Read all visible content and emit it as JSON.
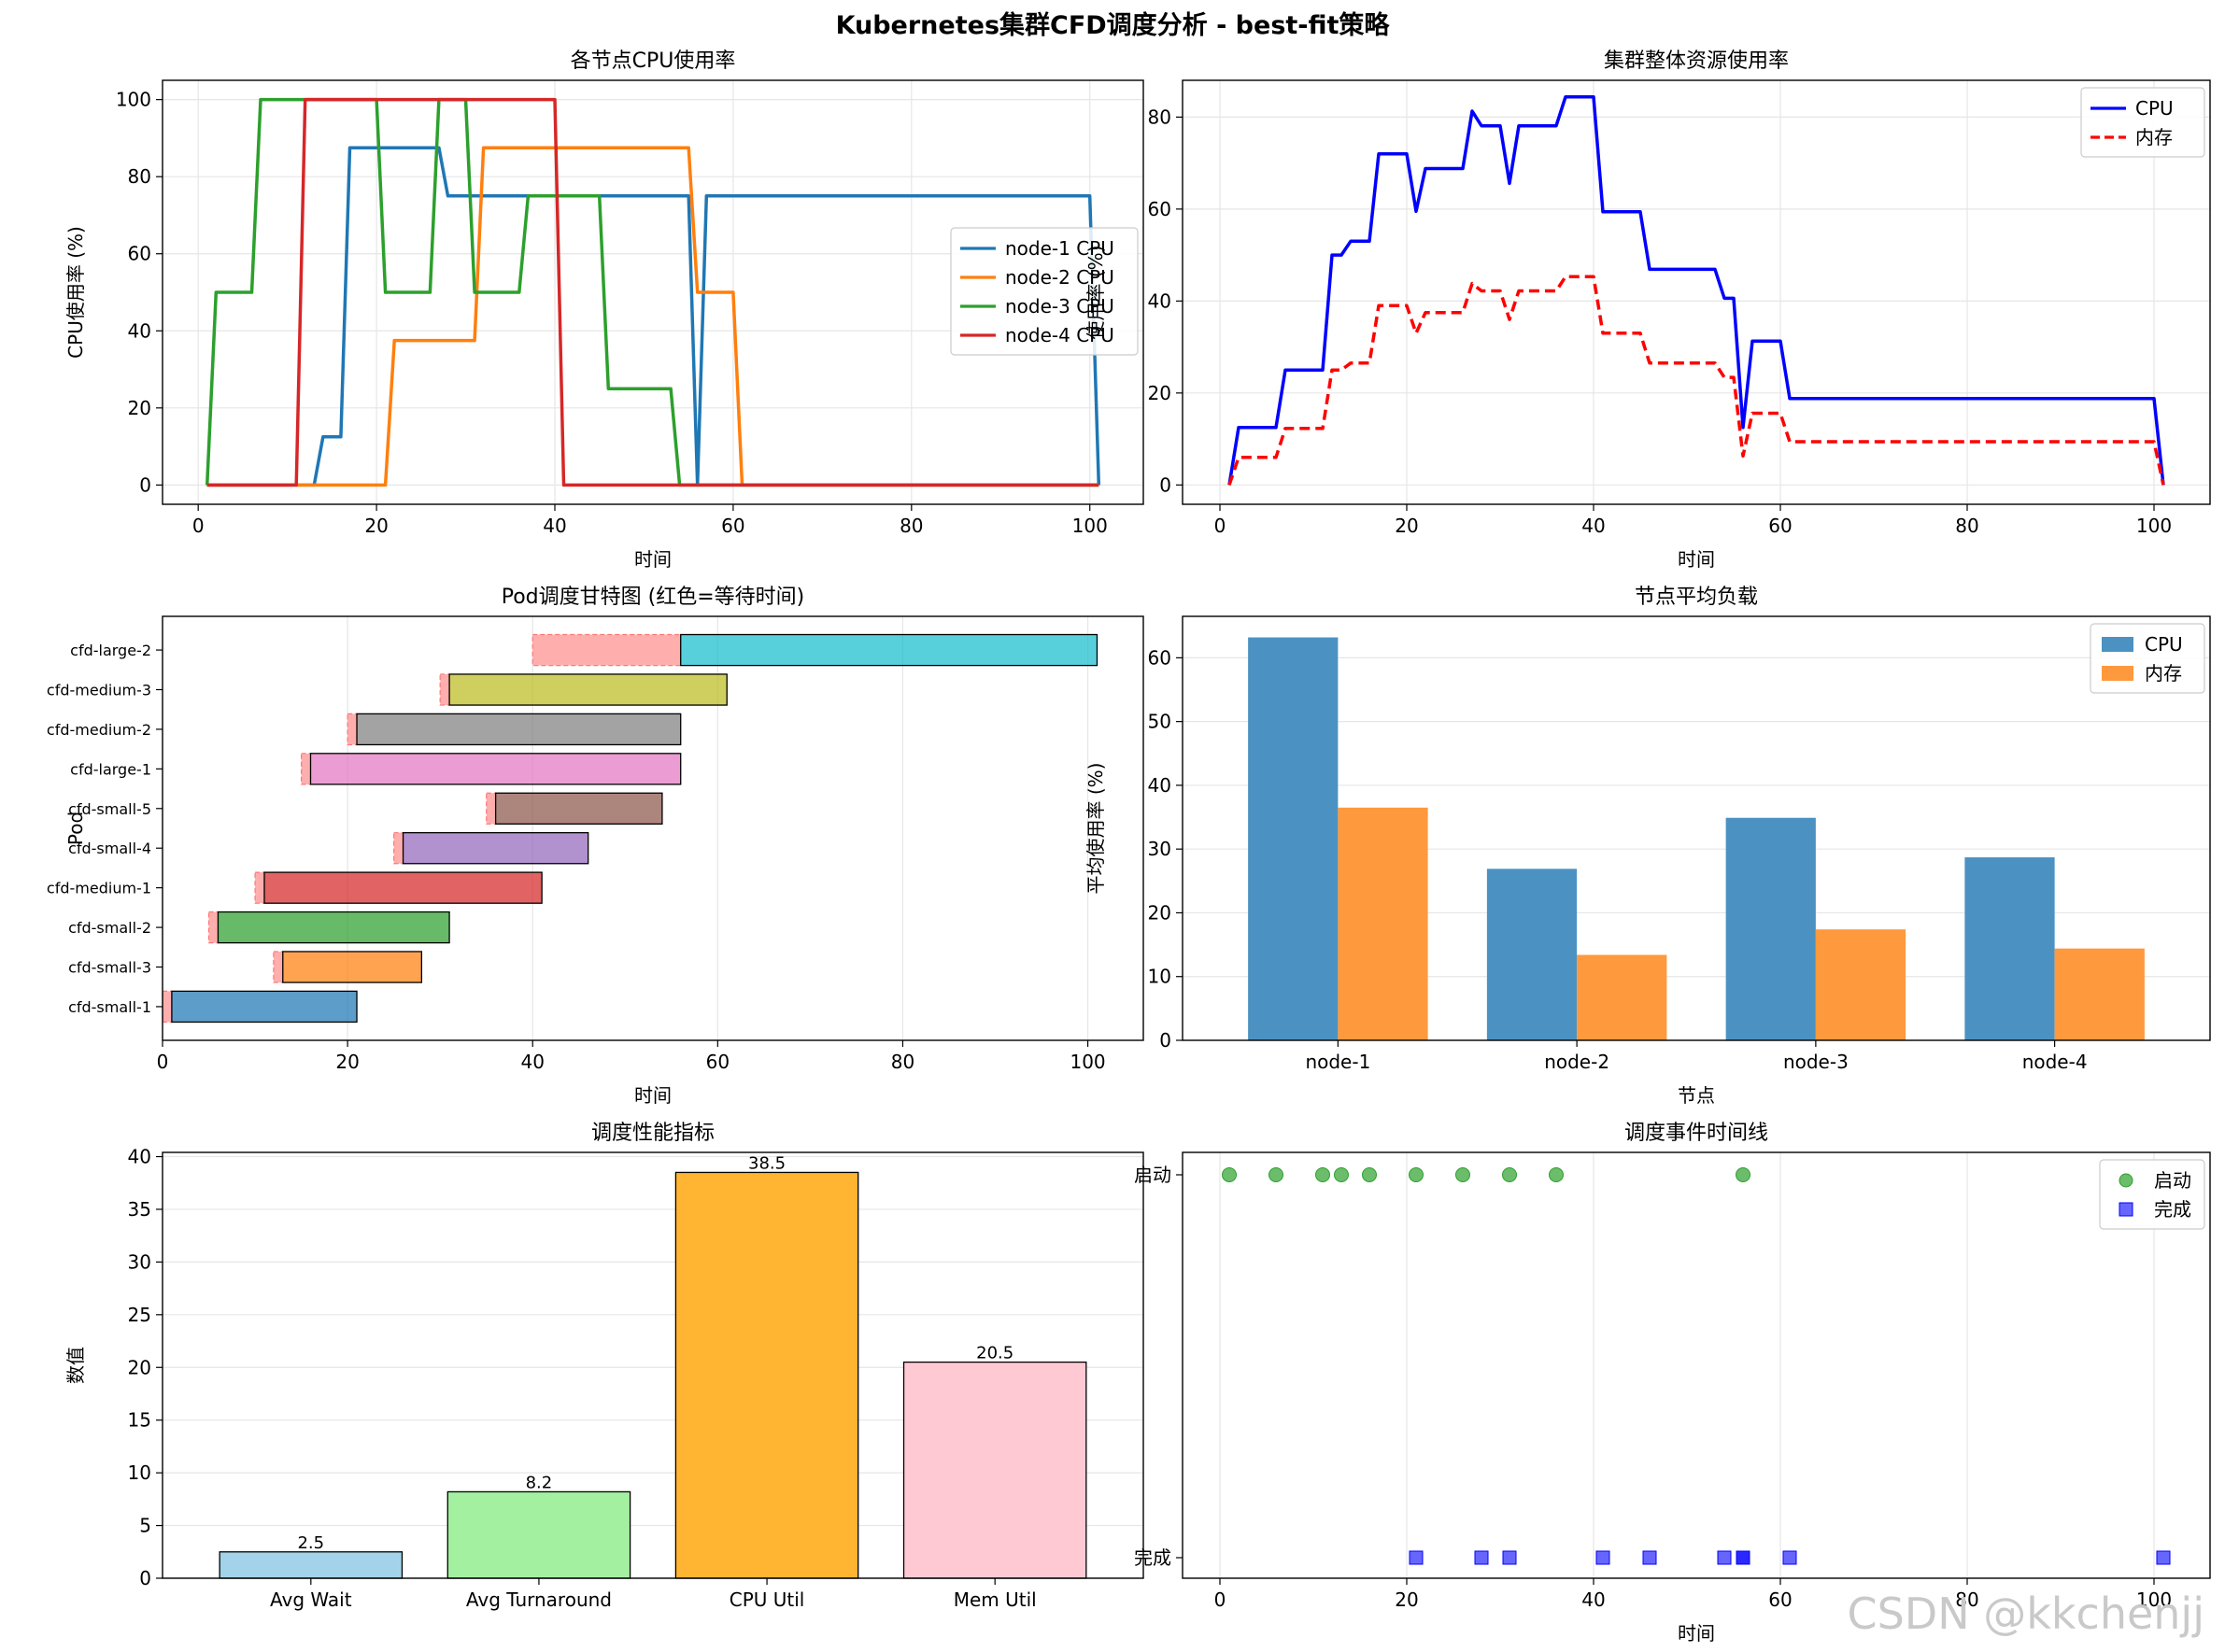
{
  "figure_title": "Kubernetes集群CFD调度分析 - best-fit策略",
  "watermark": "CSDN @kkchenjj",
  "chart_data": [
    {
      "type": "line",
      "title": "各节点CPU使用率",
      "xlabel": "时间",
      "ylabel": "CPU使用率 (%)",
      "xlim": [
        -4,
        106
      ],
      "ylim": [
        -5,
        105
      ],
      "xticks": [
        0,
        20,
        40,
        60,
        80,
        100
      ],
      "yticks": [
        0,
        20,
        40,
        60,
        80,
        100
      ],
      "grid": true,
      "legend": "center-right",
      "series": [
        {
          "name": "node-1 CPU",
          "color": "#1f77b4",
          "x": [
            1,
            2,
            12,
            13,
            14,
            15,
            16,
            17,
            27,
            28,
            29,
            30,
            31,
            55,
            56,
            57,
            58,
            100,
            101
          ],
          "y": [
            0,
            0,
            0,
            0,
            12.5,
            12.5,
            12.5,
            87.5,
            87.5,
            75,
            75,
            75,
            75,
            75,
            0,
            75,
            75,
            75,
            0
          ]
        },
        {
          "name": "node-2 CPU",
          "color": "#ff7f0e",
          "x": [
            1,
            21,
            22,
            31,
            32,
            55,
            56,
            57,
            60,
            61,
            101
          ],
          "y": [
            0,
            0,
            37.5,
            37.5,
            87.5,
            87.5,
            50,
            50,
            50,
            0,
            0
          ]
        },
        {
          "name": "node-3 CPU",
          "color": "#2ca02c",
          "x": [
            1,
            2,
            6,
            7,
            20,
            21,
            26,
            27,
            30,
            31,
            36,
            37,
            45,
            46,
            53,
            54,
            101
          ],
          "y": [
            0,
            50,
            50,
            100,
            100,
            50,
            50,
            100,
            100,
            50,
            50,
            75,
            75,
            25,
            25,
            0,
            0
          ]
        },
        {
          "name": "node-4 CPU",
          "color": "#d62728",
          "x": [
            1,
            11,
            12,
            40,
            41,
            101
          ],
          "y": [
            0,
            0,
            100,
            100,
            0,
            0
          ]
        }
      ]
    },
    {
      "type": "line",
      "title": "集群整体资源使用率",
      "xlabel": "时间",
      "ylabel": "使用率 (%)",
      "xlim": [
        -4,
        106
      ],
      "ylim": [
        -4.2,
        88
      ],
      "xticks": [
        0,
        20,
        40,
        60,
        80,
        100
      ],
      "yticks": [
        0,
        20,
        40,
        60,
        80
      ],
      "grid": true,
      "legend": "top-right",
      "series": [
        {
          "name": "CPU",
          "color": "#0000ff",
          "dash": false,
          "x": [
            1,
            2,
            6,
            7,
            11,
            12,
            13,
            14,
            16,
            17,
            20,
            21,
            22,
            26,
            27,
            28,
            30,
            31,
            32,
            36,
            37,
            39,
            40,
            41,
            44,
            45,
            46,
            53,
            54,
            55,
            56,
            57,
            60,
            61,
            100,
            101
          ],
          "y": [
            0,
            12.5,
            12.5,
            25,
            25,
            50,
            50,
            53,
            53,
            72,
            72,
            59.5,
            68.8,
            68.8,
            81.3,
            78.1,
            78.1,
            65.6,
            78.1,
            78.1,
            84.4,
            84.4,
            84.4,
            59.4,
            59.4,
            59.4,
            46.9,
            46.9,
            40.6,
            40.6,
            12.5,
            31.3,
            31.3,
            18.8,
            18.8,
            0
          ]
        },
        {
          "name": "内存",
          "color": "#ff0000",
          "dash": true,
          "x": [
            1,
            2,
            6,
            7,
            11,
            12,
            13,
            14,
            16,
            17,
            20,
            21,
            22,
            26,
            27,
            28,
            30,
            31,
            32,
            36,
            37,
            39,
            40,
            41,
            44,
            45,
            46,
            53,
            54,
            55,
            56,
            57,
            60,
            61,
            100,
            101
          ],
          "y": [
            0,
            6,
            6,
            12.3,
            12.3,
            25,
            25,
            26.5,
            26.5,
            39,
            39,
            33,
            37.5,
            37.5,
            43.8,
            42.2,
            42.2,
            36,
            42.2,
            42.2,
            45.3,
            45.3,
            45.3,
            33,
            33,
            33,
            26.5,
            26.5,
            23.4,
            23.4,
            6.3,
            15.6,
            15.6,
            9.4,
            9.4,
            0
          ]
        }
      ]
    },
    {
      "type": "gantt",
      "title": "Pod调度甘特图 (红色=等待时间)",
      "xlabel": "时间",
      "ylabel": "Pod",
      "xlim": [
        0,
        106
      ],
      "xticks": [
        0,
        20,
        40,
        60,
        80,
        100
      ],
      "grid": true,
      "tasks": [
        {
          "name": "cfd-small-1",
          "submit": 0,
          "start": 1,
          "end": 21,
          "color": "#1f77b4"
        },
        {
          "name": "cfd-small-3",
          "submit": 12,
          "start": 13,
          "end": 28,
          "color": "#ff7f0e"
        },
        {
          "name": "cfd-small-2",
          "submit": 5,
          "start": 6,
          "end": 31,
          "color": "#2ca02c"
        },
        {
          "name": "cfd-medium-1",
          "submit": 10,
          "start": 11,
          "end": 41,
          "color": "#d62728"
        },
        {
          "name": "cfd-small-4",
          "submit": 25,
          "start": 26,
          "end": 46,
          "color": "#9467bd"
        },
        {
          "name": "cfd-small-5",
          "submit": 35,
          "start": 36,
          "end": 54,
          "color": "#8c564b"
        },
        {
          "name": "cfd-large-1",
          "submit": 15,
          "start": 16,
          "end": 56,
          "color": "#e377c2"
        },
        {
          "name": "cfd-medium-2",
          "submit": 20,
          "start": 21,
          "end": 56,
          "color": "#7f7f7f"
        },
        {
          "name": "cfd-medium-3",
          "submit": 30,
          "start": 31,
          "end": 61,
          "color": "#bcbd22"
        },
        {
          "name": "cfd-large-2",
          "submit": 40,
          "start": 56,
          "end": 101,
          "color": "#17becf"
        }
      ]
    },
    {
      "type": "bar",
      "title": "节点平均负载",
      "xlabel": "节点",
      "ylabel": "平均使用率 (%)",
      "ylim": [
        0,
        66.5
      ],
      "yticks": [
        0,
        10,
        20,
        30,
        40,
        50,
        60
      ],
      "grid": true,
      "legend": "top-right",
      "categories": [
        "node-1",
        "node-2",
        "node-3",
        "node-4"
      ],
      "series": [
        {
          "name": "CPU",
          "color": "#4b92c3",
          "values": [
            63.2,
            26.9,
            34.9,
            28.7
          ]
        },
        {
          "name": "内存",
          "color": "#ff993e",
          "values": [
            36.5,
            13.4,
            17.4,
            14.4
          ]
        }
      ]
    },
    {
      "type": "bar",
      "title": "调度性能指标",
      "ylabel": "数值",
      "ylim": [
        0,
        40.4
      ],
      "yticks": [
        0,
        5,
        10,
        15,
        20,
        25,
        30,
        35,
        40
      ],
      "grid": true,
      "categories": [
        "Avg Wait",
        "Avg Turnaround",
        "CPU Util",
        "Mem Util"
      ],
      "values": [
        2.5,
        8.2,
        38.5,
        20.5
      ],
      "value_labels": [
        "2.5",
        "8.2",
        "38.5",
        "20.5"
      ],
      "colors": [
        "#a2d3ea",
        "#a4f0a1",
        "#ffb432",
        "#ffc9d3"
      ]
    },
    {
      "type": "scatter",
      "title": "调度事件时间线",
      "xlabel": "时间",
      "xlim": [
        -4,
        106
      ],
      "xticks": [
        0,
        20,
        40,
        60,
        80,
        100
      ],
      "ycategories": [
        "完成",
        "启动"
      ],
      "grid": true,
      "legend": "top-right",
      "series": [
        {
          "name": "启动",
          "marker": "circle",
          "color": "#2ca02c",
          "level": 1,
          "x": [
            1,
            6,
            11,
            13,
            16,
            21,
            26,
            31,
            36,
            56
          ]
        },
        {
          "name": "完成",
          "marker": "square",
          "color": "#0000ff",
          "level": 0,
          "x": [
            21,
            28,
            31,
            41,
            46,
            54,
            56,
            56,
            61,
            101
          ]
        }
      ]
    }
  ]
}
